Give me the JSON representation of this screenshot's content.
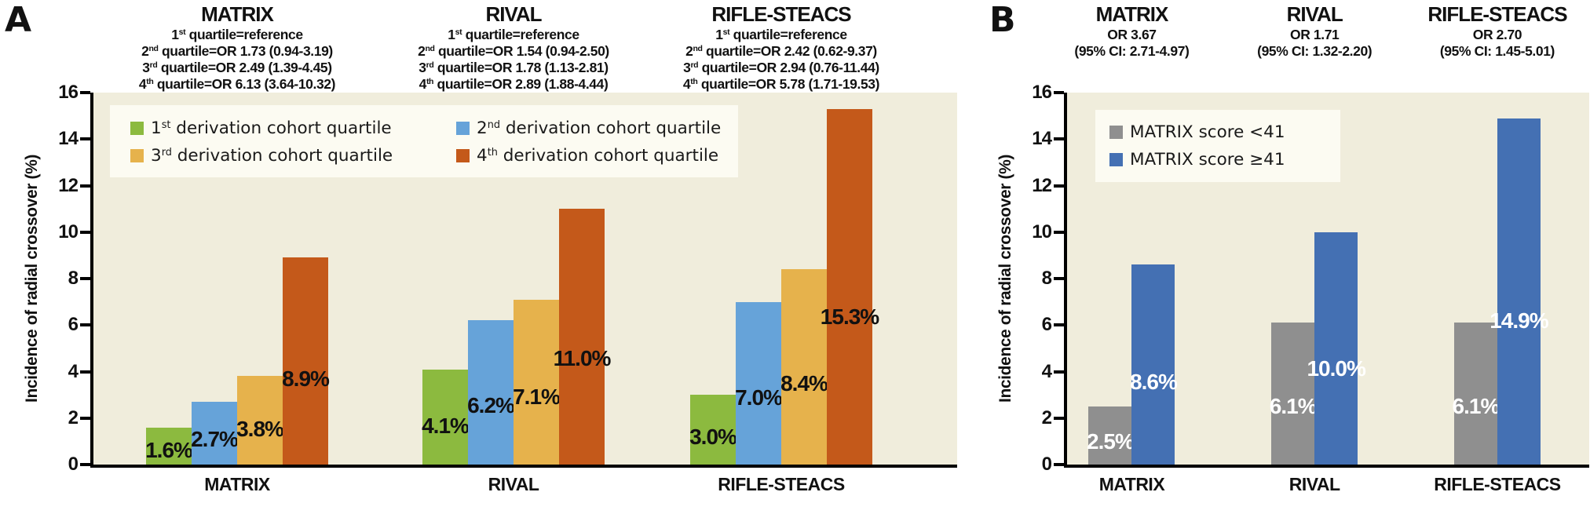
{
  "figure": {
    "panelA_label": "A",
    "panelB_label": "B"
  },
  "chart_data": [
    {
      "panel": "A",
      "type": "bar",
      "ylabel": "Incidence of radial crossover (%)",
      "ylim": [
        0,
        16
      ],
      "yticks": [
        0,
        2,
        4,
        6,
        8,
        10,
        12,
        14,
        16
      ],
      "categories": [
        "MATRIX",
        "RIVAL",
        "RIFLE-STEACS"
      ],
      "plot_bg": "#F0EDDC",
      "data_label_color": "#111111",
      "grid": "off",
      "legend_position": "top-left",
      "group_annotations": [
        {
          "title": "MATRIX",
          "lines": [
            {
              "ord": "1",
              "sup": "st",
              "rest": " quartile=reference"
            },
            {
              "ord": "2",
              "sup": "nd",
              "rest": " quartile=OR 1.73 (0.94-3.19)"
            },
            {
              "ord": "3",
              "sup": "rd",
              "rest": " quartile=OR 2.49 (1.39-4.45)"
            },
            {
              "ord": "4",
              "sup": "th",
              "rest": " quartile=OR 6.13 (3.64-10.32)"
            }
          ]
        },
        {
          "title": "RIVAL",
          "lines": [
            {
              "ord": "1",
              "sup": "st",
              "rest": " quartile=reference"
            },
            {
              "ord": "2",
              "sup": "nd",
              "rest": " quartile=OR 1.54 (0.94-2.50)"
            },
            {
              "ord": "3",
              "sup": "rd",
              "rest": " quartile=OR 1.78 (1.13-2.81)"
            },
            {
              "ord": "4",
              "sup": "th",
              "rest": " quartile=OR 2.89 (1.88-4.44)"
            }
          ]
        },
        {
          "title": "RIFLE-STEACS",
          "lines": [
            {
              "ord": "1",
              "sup": "st",
              "rest": " quartile=reference"
            },
            {
              "ord": "2",
              "sup": "nd",
              "rest": " quartile=OR 2.42 (0.62-9.37)"
            },
            {
              "ord": "3",
              "sup": "rd",
              "rest": " quartile=OR 2.94 (0.76-11.44)"
            },
            {
              "ord": "4",
              "sup": "th",
              "rest": " quartile=OR 5.78 (1.71-19.53)"
            }
          ]
        }
      ],
      "legend": {
        "items": [
          {
            "color": "#8CBA3F",
            "ord": "1",
            "sup": "st",
            "rest": " derivation cohort quartile"
          },
          {
            "color": "#66A3D9",
            "ord": "2",
            "sup": "nd",
            "rest": " derivation cohort quartile"
          },
          {
            "color": "#E6B24C",
            "ord": "3",
            "sup": "rd",
            "rest": " derivation cohort quartile"
          },
          {
            "color": "#C4591A",
            "ord": "4",
            "sup": "th",
            "rest": " derivation cohort quartile"
          }
        ]
      },
      "series": [
        {
          "name": "1st derivation cohort quartile",
          "color": "#8CBA3F",
          "values": [
            1.6,
            4.1,
            3.0
          ],
          "data_labels": [
            "1.6%",
            "4.1%",
            "3.0%"
          ]
        },
        {
          "name": "2nd derivation cohort quartile",
          "color": "#66A3D9",
          "values": [
            2.7,
            6.2,
            7.0
          ],
          "data_labels": [
            "2.7%",
            "6.2%",
            "7.0%"
          ]
        },
        {
          "name": "3rd derivation cohort quartile",
          "color": "#E6B24C",
          "values": [
            3.8,
            7.1,
            8.4
          ],
          "data_labels": [
            "3.8%",
            "7.1%",
            "8.4%"
          ]
        },
        {
          "name": "4th derivation cohort quartile",
          "color": "#C4591A",
          "values": [
            8.9,
            11.0,
            15.3
          ],
          "data_labels": [
            "8.9%",
            "11.0%",
            "15.3%"
          ]
        }
      ]
    },
    {
      "panel": "B",
      "type": "bar",
      "ylabel": "Incidence of radial crossover (%)",
      "ylim": [
        0,
        16
      ],
      "yticks": [
        0,
        2,
        4,
        6,
        8,
        10,
        12,
        14,
        16
      ],
      "categories": [
        "MATRIX",
        "RIVAL",
        "RIFLE-STEACS"
      ],
      "plot_bg": "#F0EDDC",
      "data_label_color": "#FFFFFF",
      "grid": "off",
      "legend_position": "top-left",
      "group_annotations": [
        {
          "title": "MATRIX",
          "lines": [
            {
              "text": "OR 3.67"
            },
            {
              "text": "(95% CI: 2.71-4.97)"
            }
          ]
        },
        {
          "title": "RIVAL",
          "lines": [
            {
              "text": "OR 1.71"
            },
            {
              "text": "(95% CI: 1.32-2.20)"
            }
          ]
        },
        {
          "title": "RIFLE-STEACS",
          "lines": [
            {
              "text": "OR 2.70"
            },
            {
              "text": "(95% CI: 1.45-5.01)"
            }
          ]
        }
      ],
      "legend": {
        "items": [
          {
            "color": "#8F8F8F",
            "text": "MATRIX score <41"
          },
          {
            "color": "#4470B3",
            "text": "MATRIX score ≥41"
          }
        ]
      },
      "series": [
        {
          "name": "MATRIX score <41",
          "color": "#8F8F8F",
          "values": [
            2.5,
            6.1,
            6.1
          ],
          "data_labels": [
            "2.5%",
            "6.1%",
            "6.1%"
          ]
        },
        {
          "name": "MATRIX score ≥41",
          "color": "#4470B3",
          "values": [
            8.6,
            10.0,
            14.9
          ],
          "data_labels": [
            "8.6%",
            "10.0%",
            "14.9%"
          ]
        }
      ]
    }
  ]
}
